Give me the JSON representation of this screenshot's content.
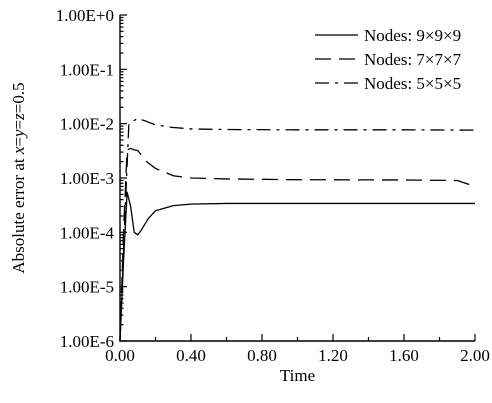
{
  "chart_data": {
    "type": "line",
    "title": "",
    "xlabel": "Time",
    "ylabel_parts": [
      {
        "text": "Absolute error at ",
        "italic": false
      },
      {
        "text": "x",
        "italic": true
      },
      {
        "text": "=",
        "italic": false
      },
      {
        "text": "y",
        "italic": true
      },
      {
        "text": "=",
        "italic": false
      },
      {
        "text": "z",
        "italic": true
      },
      {
        "text": "=0.5",
        "italic": false
      }
    ],
    "xlim": [
      0,
      2.0
    ],
    "ylim": [
      1e-06,
      1.0
    ],
    "y_scale": "log",
    "grid": false,
    "legend_position": "top-right",
    "x_ticks": [
      {
        "value": 0.0,
        "label": "0.00"
      },
      {
        "value": 0.4,
        "label": "0.40"
      },
      {
        "value": 0.8,
        "label": "0.80"
      },
      {
        "value": 1.2,
        "label": "1.20"
      },
      {
        "value": 1.6,
        "label": "1.60"
      },
      {
        "value": 2.0,
        "label": "2.00"
      }
    ],
    "y_ticks": [
      {
        "value": 1.0,
        "label": "1.00E+0"
      },
      {
        "value": 0.1,
        "label": "1.00E-1"
      },
      {
        "value": 0.01,
        "label": "1.00E-2"
      },
      {
        "value": 0.001,
        "label": "1.00E-3"
      },
      {
        "value": 0.0001,
        "label": "1.00E-4"
      },
      {
        "value": 1e-05,
        "label": "1.00E-5"
      },
      {
        "value": 1e-06,
        "label": "1.00E-6"
      }
    ],
    "series": [
      {
        "name": "Nodes: 9×9×9",
        "style": "solid",
        "color": "#000000",
        "points": [
          [
            0.0,
            1e-06
          ],
          [
            0.02,
            3e-05
          ],
          [
            0.04,
            0.00055
          ],
          [
            0.06,
            0.0003
          ],
          [
            0.08,
            0.0001
          ],
          [
            0.1,
            9e-05
          ],
          [
            0.12,
            0.00011
          ],
          [
            0.16,
            0.00018
          ],
          [
            0.2,
            0.00025
          ],
          [
            0.3,
            0.00031
          ],
          [
            0.4,
            0.00033
          ],
          [
            0.6,
            0.00034
          ],
          [
            1.0,
            0.00034
          ],
          [
            1.6,
            0.00034
          ],
          [
            2.0,
            0.00034
          ]
        ]
      },
      {
        "name": "Nodes: 7×7×7",
        "style": "dashed",
        "color": "#000000",
        "points": [
          [
            0.0,
            1e-06
          ],
          [
            0.02,
            0.0001
          ],
          [
            0.04,
            0.0033
          ],
          [
            0.06,
            0.0035
          ],
          [
            0.08,
            0.0033
          ],
          [
            0.1,
            0.0032
          ],
          [
            0.15,
            0.002
          ],
          [
            0.2,
            0.0015
          ],
          [
            0.3,
            0.0011
          ],
          [
            0.4,
            0.001
          ],
          [
            0.6,
            0.00096
          ],
          [
            1.0,
            0.00093
          ],
          [
            1.6,
            0.00092
          ],
          [
            1.9,
            0.0009
          ],
          [
            2.0,
            0.0007
          ]
        ]
      },
      {
        "name": "Nodes: 5×5×5",
        "style": "dashdot",
        "color": "#000000",
        "points": [
          [
            0.0,
            1e-06
          ],
          [
            0.03,
            0.0003
          ],
          [
            0.05,
            0.01
          ],
          [
            0.07,
            0.011
          ],
          [
            0.1,
            0.0125
          ],
          [
            0.15,
            0.011
          ],
          [
            0.2,
            0.0095
          ],
          [
            0.3,
            0.0085
          ],
          [
            0.4,
            0.008
          ],
          [
            0.6,
            0.0078
          ],
          [
            1.0,
            0.0077
          ],
          [
            1.6,
            0.0077
          ],
          [
            2.0,
            0.0076
          ]
        ]
      }
    ]
  }
}
